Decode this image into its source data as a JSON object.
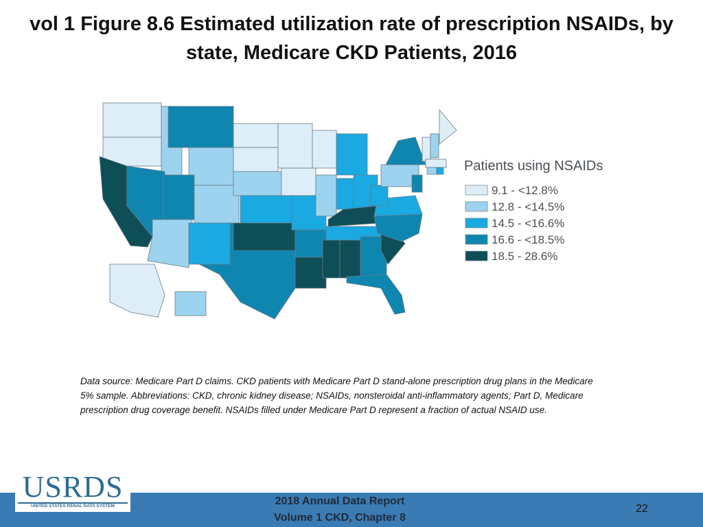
{
  "header": {
    "title": "vol 1 Figure 8.6 Estimated utilization rate of prescription NSAIDs, by state, Medicare CKD Patients, 2016"
  },
  "legend": {
    "title": "Patients using NSAIDs",
    "items": [
      {
        "label": "9.1 - <12.8%",
        "color": "#deeef9"
      },
      {
        "label": "12.8 - <14.5%",
        "color": "#9dd3ef"
      },
      {
        "label": "14.5 - <16.6%",
        "color": "#1aa9e1"
      },
      {
        "label": "16.6 - <18.5%",
        "color": "#0f86b0"
      },
      {
        "label": "18.5 - 28.6%",
        "color": "#0e4e57"
      }
    ]
  },
  "note": "Data source: Medicare Part D claims. CKD patients with Medicare Part D stand-alone prescription drug plans in the Medicare 5% sample. Abbreviations: CKD, chronic kidney disease; NSAIDs, nonsteroidal anti-inflammatory agents; Part D, Medicare prescription drug coverage benefit. NSAIDs filled under Medicare Part D represent a fraction of actual NSAID use.",
  "footer": {
    "logo": "USRDS",
    "logo_sub": "UNITED STATES RENAL DATA SYSTEM",
    "line1": "2018 Annual Data Report",
    "line2": "Volume 1 CKD, Chapter 8",
    "page": "22"
  }
}
